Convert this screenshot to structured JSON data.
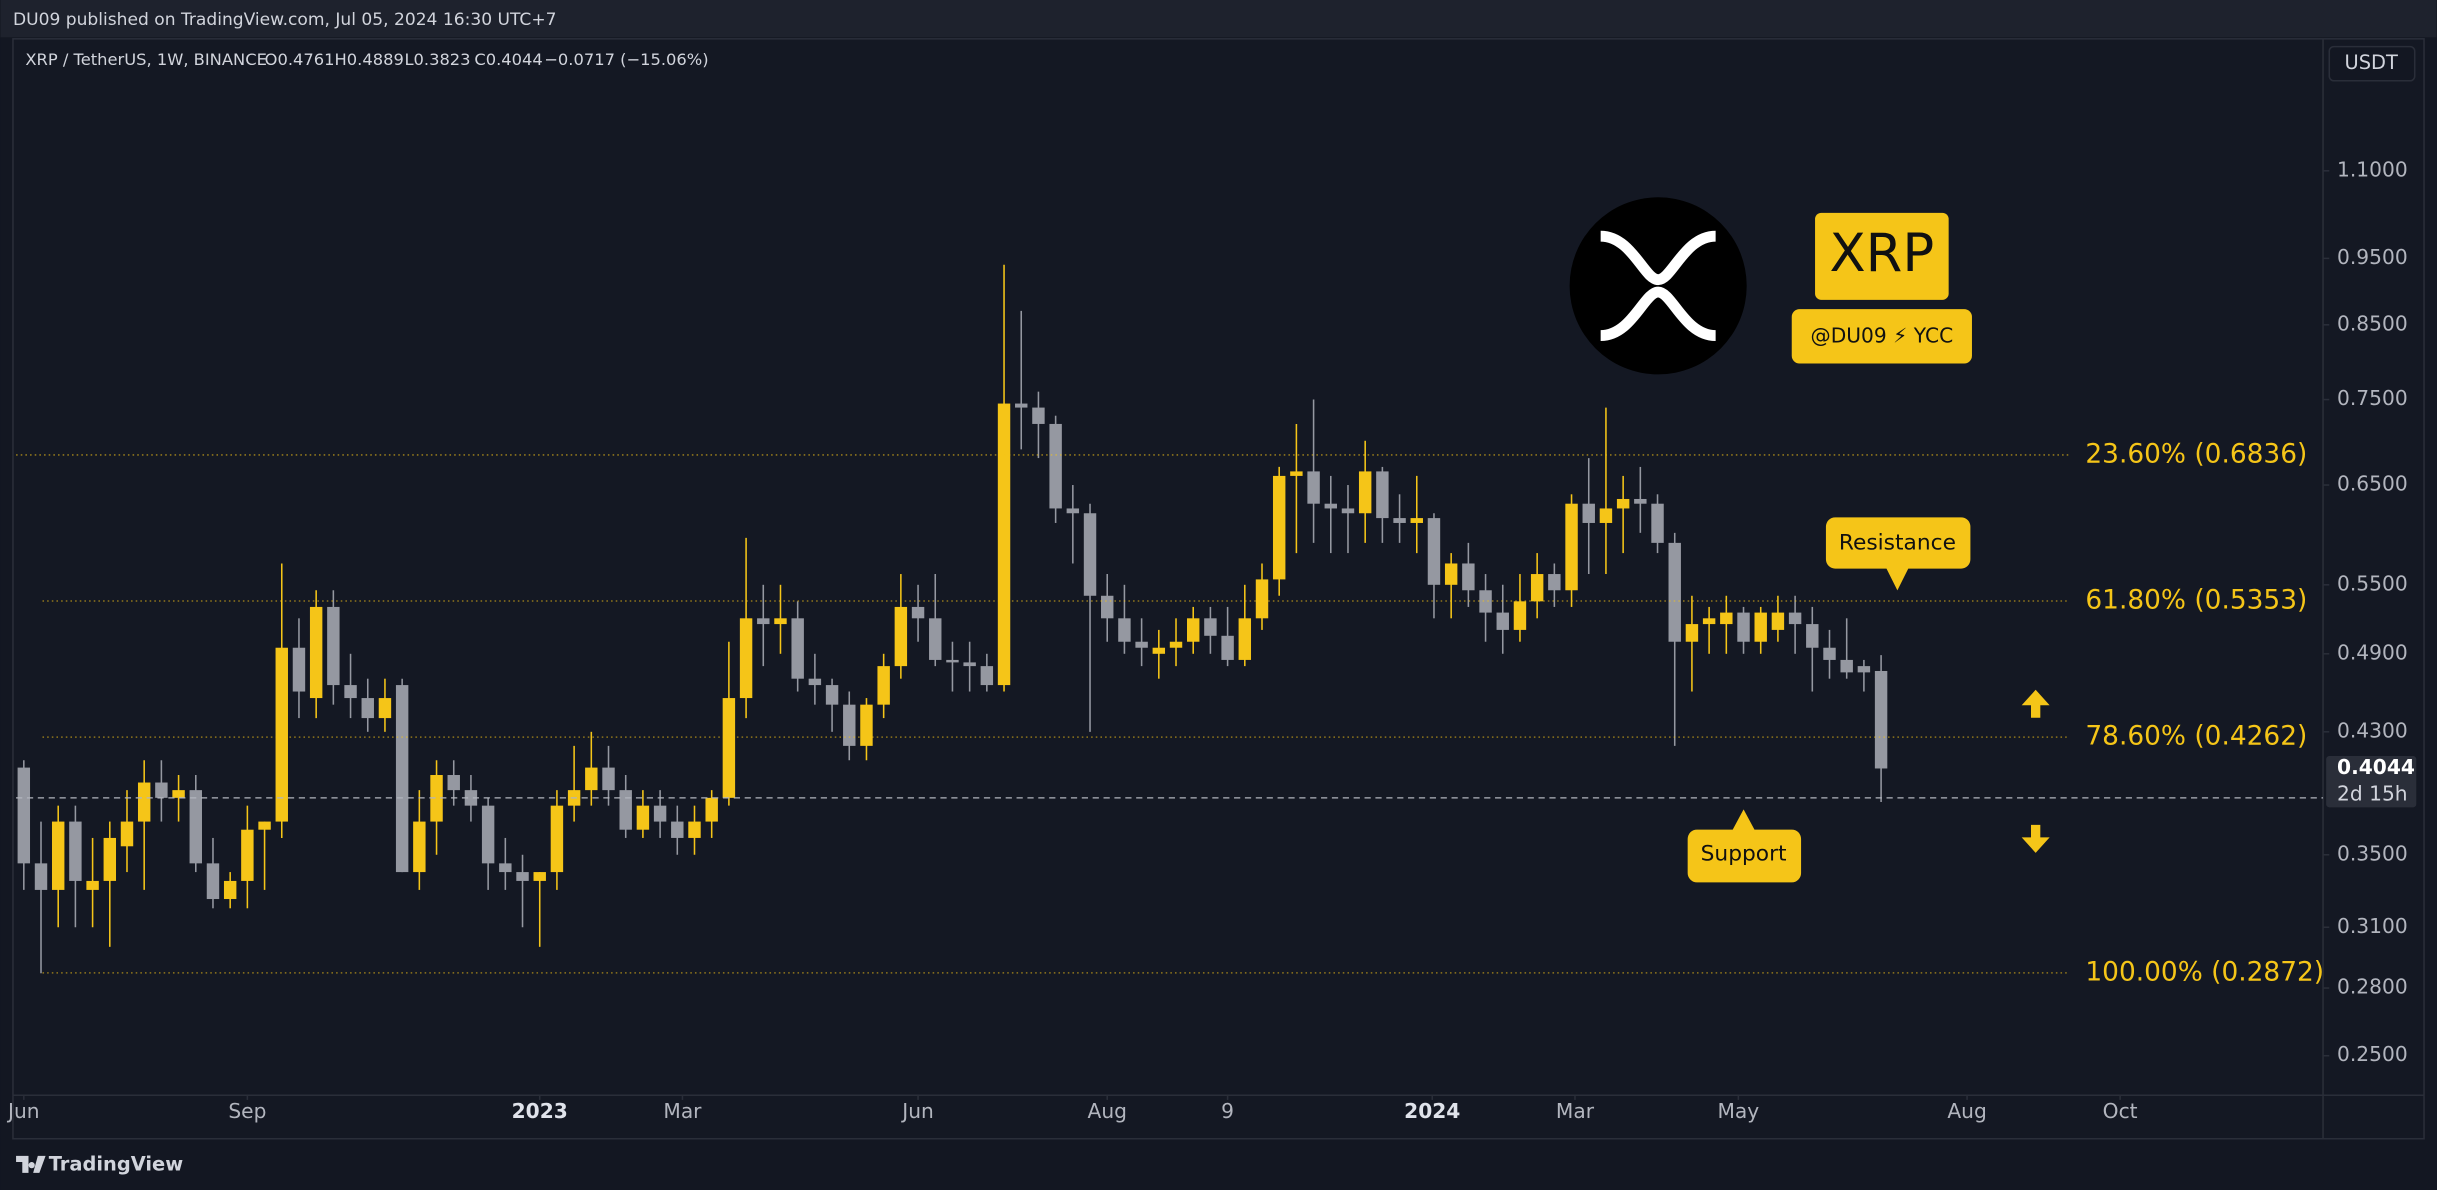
{
  "header": {
    "publisher": "DU09 published on TradingView.com, Jul 05, 2024 16:30 UTC+7",
    "symbol": "XRP / TetherUS, 1W, BINANCE",
    "legend_values": [
      "O0.4761",
      "H0.4889",
      "L0.3823",
      "C0.4044",
      "−0.0717 (−15.06%)"
    ],
    "currency": "USDT"
  },
  "footer": {
    "brand": "TradingView"
  },
  "annotations": {
    "logo_text": "XRP",
    "credit": "@DU09 ⚡ YCC",
    "resistance": "Resistance",
    "support": "Support"
  },
  "chart_data": {
    "type": "candlestick",
    "log_scale": true,
    "up_color": "#f5c518",
    "down_color": "#9598a1",
    "xlim": [
      -0.45,
      133.7
    ],
    "ylim": [
      0.234,
      1.372
    ],
    "xticks": [
      {
        "value": 0,
        "label": "Jun"
      },
      {
        "value": 13,
        "label": "Sep"
      },
      {
        "value": 30,
        "label": "2023"
      },
      {
        "value": 38.3,
        "label": "Mar"
      },
      {
        "value": 52,
        "label": "Jun"
      },
      {
        "value": 63,
        "label": "Aug"
      },
      {
        "value": 70,
        "label": "9"
      },
      {
        "value": 81.9,
        "label": "2024"
      },
      {
        "value": 90.2,
        "label": "Mar"
      },
      {
        "value": 99.7,
        "label": "May"
      },
      {
        "value": 113,
        "label": "Aug"
      },
      {
        "value": 121.9,
        "label": "Oct"
      }
    ],
    "yticks": [
      {
        "value": 0.25,
        "label": "0.2500"
      },
      {
        "value": 0.28,
        "label": "0.2800"
      },
      {
        "value": 0.31,
        "label": "0.3100"
      },
      {
        "value": 0.35,
        "label": "0.3500"
      },
      {
        "value": 0.43,
        "label": "0.4300"
      },
      {
        "value": 0.49,
        "label": "0.4900"
      },
      {
        "value": 0.55,
        "label": "0.5500"
      },
      {
        "value": 0.65,
        "label": "0.6500"
      },
      {
        "value": 0.75,
        "label": "0.7500"
      },
      {
        "value": 0.85,
        "label": "0.8500"
      },
      {
        "value": 0.95,
        "label": "0.9500"
      },
      {
        "value": 1.1,
        "label": "1.1000"
      }
    ],
    "fib_levels": [
      {
        "value": 0.6836,
        "label": "23.60% (0.6836)"
      },
      {
        "value": 0.5353,
        "label": "61.80% (0.5353)"
      },
      {
        "value": 0.4262,
        "label": "78.60% (0.4262)"
      },
      {
        "value": 0.2872,
        "label": "100.00% (0.2872)"
      }
    ],
    "fib_color": "#f5c518",
    "dashed_level": 0.385,
    "price_label": {
      "value": 0.4044,
      "label": "0.4044"
    },
    "countdown": "2d 15h",
    "open": [
      0.405,
      0.345,
      0.33,
      0.37,
      0.33,
      0.335,
      0.355,
      0.37,
      0.395,
      0.385,
      0.39,
      0.345,
      0.325,
      0.335,
      0.365,
      0.37,
      0.495,
      0.455,
      0.53,
      0.465,
      0.455,
      0.44,
      0.465,
      0.34,
      0.37,
      0.4,
      0.39,
      0.38,
      0.345,
      0.34,
      0.335,
      0.34,
      0.38,
      0.39,
      0.405,
      0.39,
      0.365,
      0.38,
      0.37,
      0.36,
      0.37,
      0.385,
      0.455,
      0.52,
      0.515,
      0.52,
      0.47,
      0.465,
      0.45,
      0.42,
      0.45,
      0.48,
      0.53,
      0.52,
      0.485,
      0.483,
      0.48,
      0.465,
      0.745,
      0.74,
      0.72,
      0.625,
      0.62,
      0.54,
      0.52,
      0.5,
      0.49,
      0.495,
      0.5,
      0.52,
      0.505,
      0.485,
      0.52,
      0.555,
      0.66,
      0.665,
      0.63,
      0.625,
      0.62,
      0.665,
      0.615,
      0.61,
      0.615,
      0.55,
      0.57,
      0.545,
      0.525,
      0.51,
      0.535,
      0.56,
      0.545,
      0.63,
      0.61,
      0.625,
      0.635,
      0.63,
      0.59,
      0.5,
      0.515,
      0.515,
      0.525,
      0.5,
      0.51,
      0.525,
      0.515,
      0.495,
      0.485,
      0.48,
      0.4761
    ],
    "high": [
      0.41,
      0.37,
      0.38,
      0.38,
      0.36,
      0.37,
      0.39,
      0.41,
      0.41,
      0.4,
      0.4,
      0.36,
      0.34,
      0.38,
      0.37,
      0.57,
      0.52,
      0.545,
      0.545,
      0.49,
      0.47,
      0.47,
      0.47,
      0.39,
      0.41,
      0.41,
      0.4,
      0.385,
      0.36,
      0.35,
      0.34,
      0.39,
      0.42,
      0.43,
      0.42,
      0.4,
      0.39,
      0.39,
      0.38,
      0.38,
      0.39,
      0.5,
      0.595,
      0.55,
      0.55,
      0.535,
      0.49,
      0.47,
      0.46,
      0.455,
      0.49,
      0.56,
      0.55,
      0.56,
      0.5,
      0.5,
      0.49,
      0.94,
      0.87,
      0.76,
      0.73,
      0.65,
      0.63,
      0.56,
      0.55,
      0.52,
      0.51,
      0.52,
      0.53,
      0.53,
      0.53,
      0.55,
      0.57,
      0.67,
      0.72,
      0.75,
      0.66,
      0.65,
      0.7,
      0.67,
      0.64,
      0.66,
      0.62,
      0.58,
      0.59,
      0.56,
      0.55,
      0.56,
      0.58,
      0.57,
      0.64,
      0.68,
      0.74,
      0.66,
      0.67,
      0.64,
      0.6,
      0.54,
      0.53,
      0.54,
      0.53,
      0.53,
      0.54,
      0.54,
      0.53,
      0.51,
      0.52,
      0.485,
      0.4889
    ],
    "low": [
      0.33,
      0.287,
      0.31,
      0.31,
      0.31,
      0.3,
      0.34,
      0.33,
      0.37,
      0.37,
      0.34,
      0.32,
      0.32,
      0.32,
      0.33,
      0.36,
      0.44,
      0.44,
      0.45,
      0.44,
      0.43,
      0.43,
      0.34,
      0.33,
      0.35,
      0.38,
      0.37,
      0.33,
      0.33,
      0.31,
      0.3,
      0.33,
      0.37,
      0.38,
      0.38,
      0.36,
      0.36,
      0.36,
      0.35,
      0.35,
      0.36,
      0.38,
      0.44,
      0.48,
      0.49,
      0.46,
      0.45,
      0.43,
      0.41,
      0.41,
      0.44,
      0.47,
      0.5,
      0.48,
      0.46,
      0.46,
      0.46,
      0.46,
      0.69,
      0.68,
      0.61,
      0.57,
      0.43,
      0.5,
      0.49,
      0.48,
      0.47,
      0.48,
      0.49,
      0.49,
      0.48,
      0.48,
      0.51,
      0.54,
      0.58,
      0.59,
      0.58,
      0.58,
      0.59,
      0.59,
      0.59,
      0.58,
      0.52,
      0.52,
      0.53,
      0.5,
      0.49,
      0.5,
      0.52,
      0.53,
      0.53,
      0.56,
      0.56,
      0.58,
      0.6,
      0.58,
      0.42,
      0.46,
      0.49,
      0.49,
      0.49,
      0.49,
      0.5,
      0.49,
      0.46,
      0.47,
      0.47,
      0.46,
      0.3823
    ],
    "close": [
      0.345,
      0.33,
      0.37,
      0.335,
      0.335,
      0.36,
      0.37,
      0.395,
      0.385,
      0.39,
      0.345,
      0.325,
      0.335,
      0.365,
      0.37,
      0.495,
      0.46,
      0.53,
      0.465,
      0.455,
      0.44,
      0.455,
      0.34,
      0.37,
      0.4,
      0.39,
      0.38,
      0.345,
      0.34,
      0.335,
      0.34,
      0.38,
      0.39,
      0.405,
      0.39,
      0.365,
      0.38,
      0.37,
      0.36,
      0.37,
      0.385,
      0.455,
      0.52,
      0.515,
      0.52,
      0.47,
      0.465,
      0.45,
      0.42,
      0.45,
      0.48,
      0.53,
      0.52,
      0.485,
      0.483,
      0.48,
      0.465,
      0.745,
      0.74,
      0.72,
      0.625,
      0.62,
      0.54,
      0.52,
      0.5,
      0.495,
      0.495,
      0.5,
      0.52,
      0.505,
      0.485,
      0.52,
      0.555,
      0.66,
      0.665,
      0.63,
      0.625,
      0.62,
      0.665,
      0.615,
      0.61,
      0.615,
      0.55,
      0.57,
      0.545,
      0.525,
      0.51,
      0.535,
      0.56,
      0.545,
      0.63,
      0.61,
      0.625,
      0.635,
      0.63,
      0.59,
      0.5,
      0.515,
      0.52,
      0.525,
      0.5,
      0.525,
      0.525,
      0.515,
      0.495,
      0.485,
      0.475,
      0.475,
      0.4044
    ]
  }
}
